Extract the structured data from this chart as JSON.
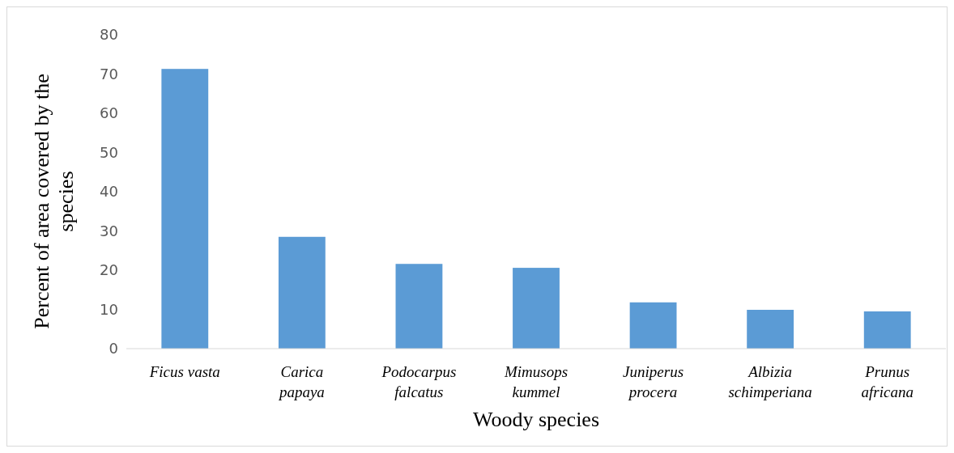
{
  "chart_data": {
    "type": "bar",
    "xlabel": "Woody species",
    "ylabel": "Percent of area covered by the species",
    "categories": [
      "Ficus vasta",
      "Carica papaya",
      "Podocarpus falcatus",
      "Mimusops kummel",
      "Juniperus procera",
      "Albizia schimperiana",
      "Prunus africana"
    ],
    "values": [
      71.3,
      28.5,
      21.6,
      20.6,
      11.8,
      9.9,
      9.5
    ],
    "color": "#5b9bd5",
    "ylim": [
      0,
      80
    ],
    "yticks": [
      0,
      10,
      20,
      30,
      40,
      50,
      60,
      70,
      80
    ],
    "grid": false
  }
}
